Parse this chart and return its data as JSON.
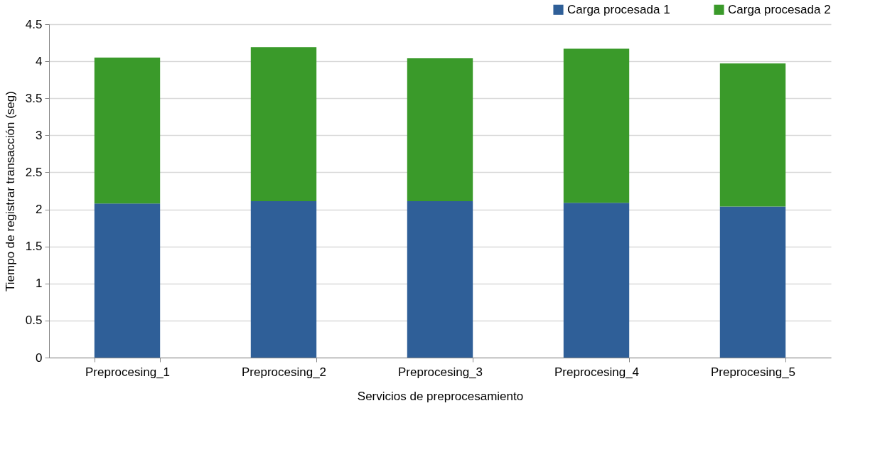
{
  "chart_data": {
    "type": "bar",
    "stacked": true,
    "xlabel": "Servicios de preprocesamiento",
    "ylabel": "Tiempo de registrar transacción (seg)",
    "categories": [
      "Preprocesing_1",
      "Preprocesing_2",
      "Preprocesing_3",
      "Preprocesing_4",
      "Preprocesing_5"
    ],
    "series": [
      {
        "name": "Carga procesada 1",
        "color": "#2f5f98",
        "values": [
          2.08,
          2.11,
          2.11,
          2.09,
          2.04
        ]
      },
      {
        "name": "Carga procesada 2",
        "color": "#3a9a2a",
        "values": [
          1.97,
          2.08,
          1.93,
          2.08,
          1.93
        ]
      }
    ],
    "ylim": [
      0,
      4.5
    ],
    "yticks": [
      0,
      0.5,
      1,
      1.5,
      2,
      2.5,
      3,
      3.5,
      4,
      4.5
    ],
    "grid": "y",
    "legend": "top right"
  }
}
